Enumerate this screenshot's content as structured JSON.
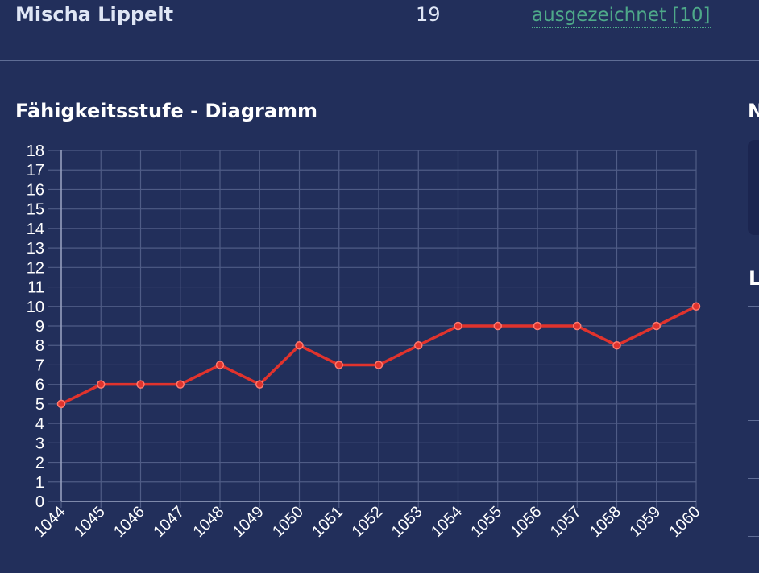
{
  "player": {
    "name": "Mischa Lippelt",
    "count": "19",
    "rating": "ausgezeichnet [10]"
  },
  "chart_section": {
    "title": "Fähigkeitsstufe - Diagramm"
  },
  "side": {
    "heading1": "N",
    "heading2": "L"
  },
  "colors": {
    "background": "#222f5b",
    "line": "#e0332d",
    "grid": "#4f5c86",
    "link": "#4ea989"
  },
  "chart_data": {
    "type": "line",
    "title": "",
    "xlabel": "",
    "ylabel": "",
    "categories": [
      "1044",
      "1045",
      "1046",
      "1047",
      "1048",
      "1049",
      "1050",
      "1051",
      "1052",
      "1053",
      "1054",
      "1055",
      "1056",
      "1057",
      "1058",
      "1059",
      "1060"
    ],
    "series": [
      {
        "values": [
          5,
          6,
          6,
          6,
          7,
          6,
          8,
          7,
          7,
          8,
          9,
          9,
          9,
          9,
          8,
          9,
          10
        ]
      }
    ],
    "ylim": [
      0,
      18
    ],
    "yticks": [
      "0",
      "1",
      "2",
      "3",
      "4",
      "5",
      "6",
      "7",
      "8",
      "9",
      "10",
      "11",
      "12",
      "13",
      "14",
      "15",
      "16",
      "17",
      "18"
    ],
    "grid": true,
    "legend": "none"
  }
}
